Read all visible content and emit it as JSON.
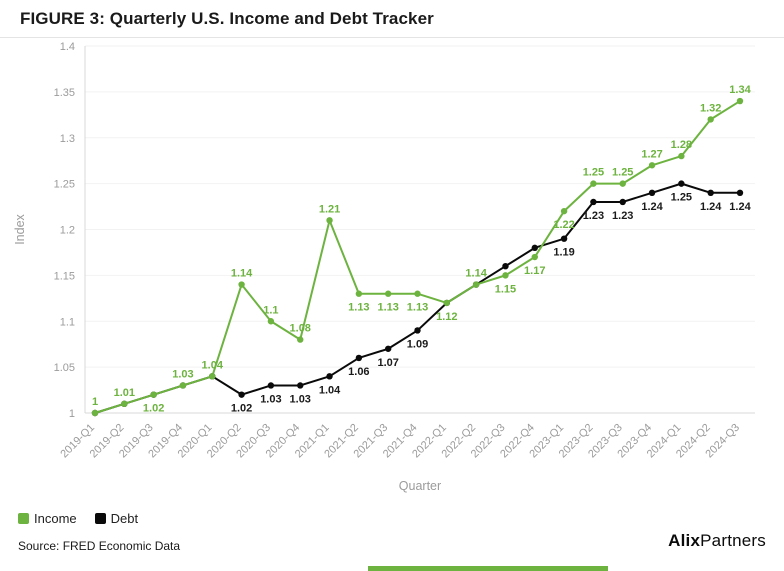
{
  "title": "FIGURE 3: Quarterly U.S. Income and Debt Tracker",
  "source": "Source: FRED Economic Data",
  "logo": {
    "bold": "Alix",
    "regular": "Partners"
  },
  "colors": {
    "accent_green": "#6db33f",
    "debt_black": "#0a0a0a",
    "axis_gray": "#9b9b9b"
  },
  "legend": [
    {
      "label": "Income",
      "color": "#6db33f"
    },
    {
      "label": "Debt",
      "color": "#0a0a0a"
    }
  ],
  "chart_data": {
    "type": "line",
    "title": "FIGURE 3: Quarterly U.S. Income and Debt Tracker",
    "xlabel": "Quarter",
    "ylabel": "Index",
    "ylim": [
      1,
      1.4
    ],
    "yticks": [
      "1",
      "1.05",
      "1.1",
      "1.15",
      "1.2",
      "1.25",
      "1.3",
      "1.35",
      "1.4"
    ],
    "grid": true,
    "legend_position": "bottom-left",
    "x": [
      "2019-Q1",
      "2019-Q2",
      "2019-Q3",
      "2019-Q4",
      "2020-Q1",
      "2020-Q2",
      "2020-Q3",
      "2020-Q4",
      "2021-Q1",
      "2021-Q2",
      "2021-Q3",
      "2021-Q4",
      "2022-Q1",
      "2022-Q2",
      "2022-Q3",
      "2022-Q4",
      "2023-Q1",
      "2023-Q2",
      "2023-Q3",
      "2023-Q4",
      "2024-Q1",
      "2024-Q2",
      "2024-Q3"
    ],
    "series": [
      {
        "name": "Income",
        "color": "#6db33f",
        "label_color": "#6db33f",
        "label_default_side": "above",
        "label_below_indices": [
          2,
          9,
          10,
          11,
          12,
          14,
          15,
          16
        ],
        "values": [
          1,
          1.01,
          1.02,
          1.03,
          1.04,
          1.14,
          1.1,
          1.08,
          1.21,
          1.13,
          1.13,
          1.13,
          1.12,
          1.14,
          1.15,
          1.17,
          1.22,
          1.25,
          1.25,
          1.27,
          1.28,
          1.32,
          1.34
        ],
        "labels": [
          "1",
          "1.01",
          "1.02",
          "1.03",
          "1.04",
          "1.14",
          "1.1",
          "1.08",
          "1.21",
          "1.13",
          "1.13",
          "1.13",
          "1.12",
          "1.14",
          "1.15",
          "1.17",
          "1.22",
          "1.25",
          "1.25",
          "1.27",
          "1.28",
          "1.32",
          "1.34"
        ]
      },
      {
        "name": "Debt",
        "color": "#0a0a0a",
        "label_color": "#1a1a1a",
        "label_default_side": "below",
        "values": [
          1,
          1.01,
          1.02,
          1.03,
          1.04,
          1.02,
          1.03,
          1.03,
          1.04,
          1.06,
          1.07,
          1.09,
          1.12,
          1.14,
          1.16,
          1.18,
          1.19,
          1.23,
          1.23,
          1.24,
          1.25,
          1.24,
          1.24
        ],
        "labels": [
          null,
          null,
          null,
          null,
          null,
          "1.02",
          "1.03",
          "1.03",
          "1.04",
          "1.06",
          "1.07",
          "1.09",
          null,
          null,
          null,
          null,
          "1.19",
          "1.23",
          "1.23",
          "1.24",
          "1.25",
          "1.24",
          "1.24"
        ]
      }
    ]
  }
}
